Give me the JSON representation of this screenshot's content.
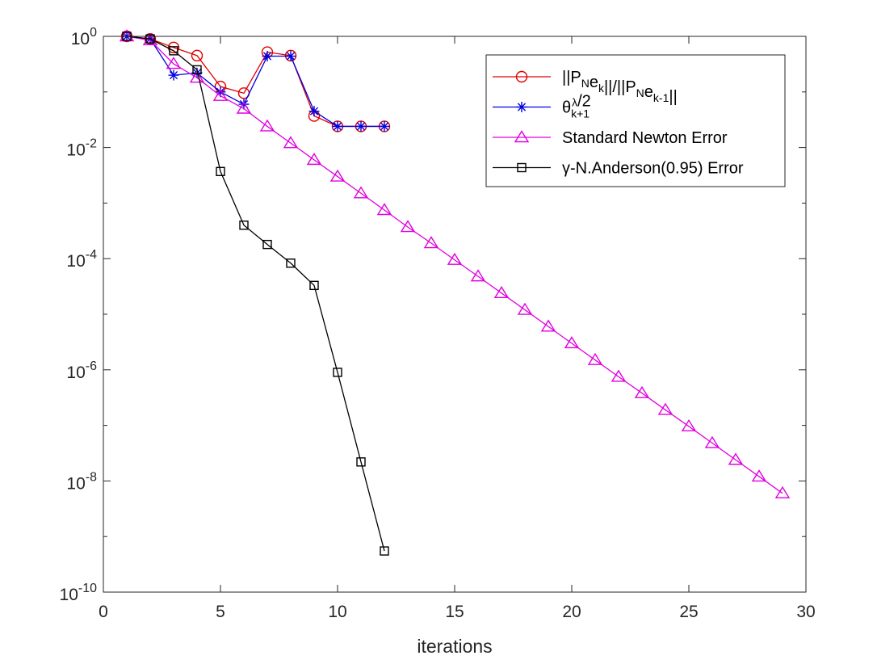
{
  "chart_data": {
    "type": "line",
    "xlabel": "iterations",
    "ylabel": "",
    "title": "",
    "xlim": [
      0,
      30
    ],
    "ylim": [
      1e-10,
      1
    ],
    "yscale": "log",
    "grid": false,
    "legend_position": "top-right",
    "x_ticks": [
      0,
      5,
      10,
      15,
      20,
      25,
      30
    ],
    "x_tick_labels": [
      "0",
      "5",
      "10",
      "15",
      "20",
      "25",
      "30"
    ],
    "y_ticks": [
      1e-10,
      1e-08,
      1e-06,
      0.0001,
      0.01,
      1
    ],
    "y_tick_labels": [
      {
        "base": "10",
        "exp": "-10"
      },
      {
        "base": "10",
        "exp": "-8"
      },
      {
        "base": "10",
        "exp": "-6"
      },
      {
        "base": "10",
        "exp": "-4"
      },
      {
        "base": "10",
        "exp": "-2"
      },
      {
        "base": "10",
        "exp": "0"
      }
    ],
    "series": [
      {
        "name": "||P_N e_k||/||P_N e_{k-1}||",
        "color": "#e00000",
        "marker": "circle",
        "x": [
          1,
          2,
          3,
          4,
          5,
          6,
          7,
          8,
          9,
          10,
          11,
          12
        ],
        "y": [
          1.0,
          0.9,
          0.63,
          0.45,
          0.125,
          0.095,
          0.52,
          0.45,
          0.037,
          0.024,
          0.024,
          0.024
        ]
      },
      {
        "name": "theta_{k+1}^lambda/2",
        "color": "#0000e0",
        "marker": "star",
        "x": [
          1,
          2,
          3,
          4,
          5,
          6,
          7,
          8,
          9,
          10,
          11,
          12
        ],
        "y": [
          1.0,
          0.9,
          0.2,
          0.22,
          0.1,
          0.06,
          0.44,
          0.44,
          0.045,
          0.024,
          0.024,
          0.024
        ]
      },
      {
        "name": "Standard Newton Error",
        "color": "#e000e0",
        "marker": "triangle",
        "x": [
          1,
          2,
          3,
          4,
          5,
          6,
          7,
          8,
          9,
          10,
          11,
          12,
          13,
          14,
          15,
          16,
          17,
          18,
          19,
          20,
          21,
          22,
          23,
          24,
          25,
          26,
          27,
          28,
          29
        ],
        "y": [
          1.0,
          0.85,
          0.32,
          0.18,
          0.085,
          0.05,
          0.024,
          0.012,
          0.006,
          0.003,
          0.0015,
          0.00075,
          0.00037,
          0.00019,
          9.5e-05,
          4.8e-05,
          2.4e-05,
          1.2e-05,
          6e-06,
          3e-06,
          1.5e-06,
          7.5e-07,
          3.8e-07,
          1.9e-07,
          9.6e-08,
          4.8e-08,
          2.4e-08,
          1.2e-08,
          6e-09
        ]
      },
      {
        "name": "gamma-N.Anderson(0.95) Error",
        "color": "#000000",
        "marker": "square",
        "x": [
          1,
          2,
          3,
          4,
          5,
          6,
          7,
          8,
          9,
          10,
          11,
          12
        ],
        "y": [
          1.0,
          0.9,
          0.55,
          0.25,
          0.0037,
          0.0004,
          0.00018,
          8.3e-05,
          3.3e-05,
          9e-07,
          2.2e-08,
          5.5e-10
        ]
      }
    ]
  },
  "legend": [
    {
      "key": "s1",
      "text_main": "||P",
      "parts": [
        {
          "t": "||P",
          "sub": false
        },
        {
          "t": "N",
          "sub": true
        },
        {
          "t": "e",
          "sub": false
        },
        {
          "t": "k",
          "sub": true
        },
        {
          "t": "||/||P",
          "sub": false
        },
        {
          "t": "N",
          "sub": true
        },
        {
          "t": "e",
          "sub": false
        },
        {
          "t": "k-1",
          "sub": true
        },
        {
          "t": "||",
          "sub": false
        }
      ]
    },
    {
      "key": "s2",
      "parts": [
        {
          "t": "θ",
          "sub": false
        },
        {
          "t": "k+1",
          "sub": true
        },
        {
          "t": "λ",
          "sup": true
        },
        {
          "t": "/2",
          "sub": false
        }
      ]
    },
    {
      "key": "s3",
      "parts": [
        {
          "t": "Standard Newton Error",
          "sub": false
        }
      ]
    },
    {
      "key": "s4",
      "parts": [
        {
          "t": "γ",
          "sub": false
        },
        {
          "t": "-N.Anderson(0.95) Error",
          "sub": false
        }
      ]
    }
  ]
}
